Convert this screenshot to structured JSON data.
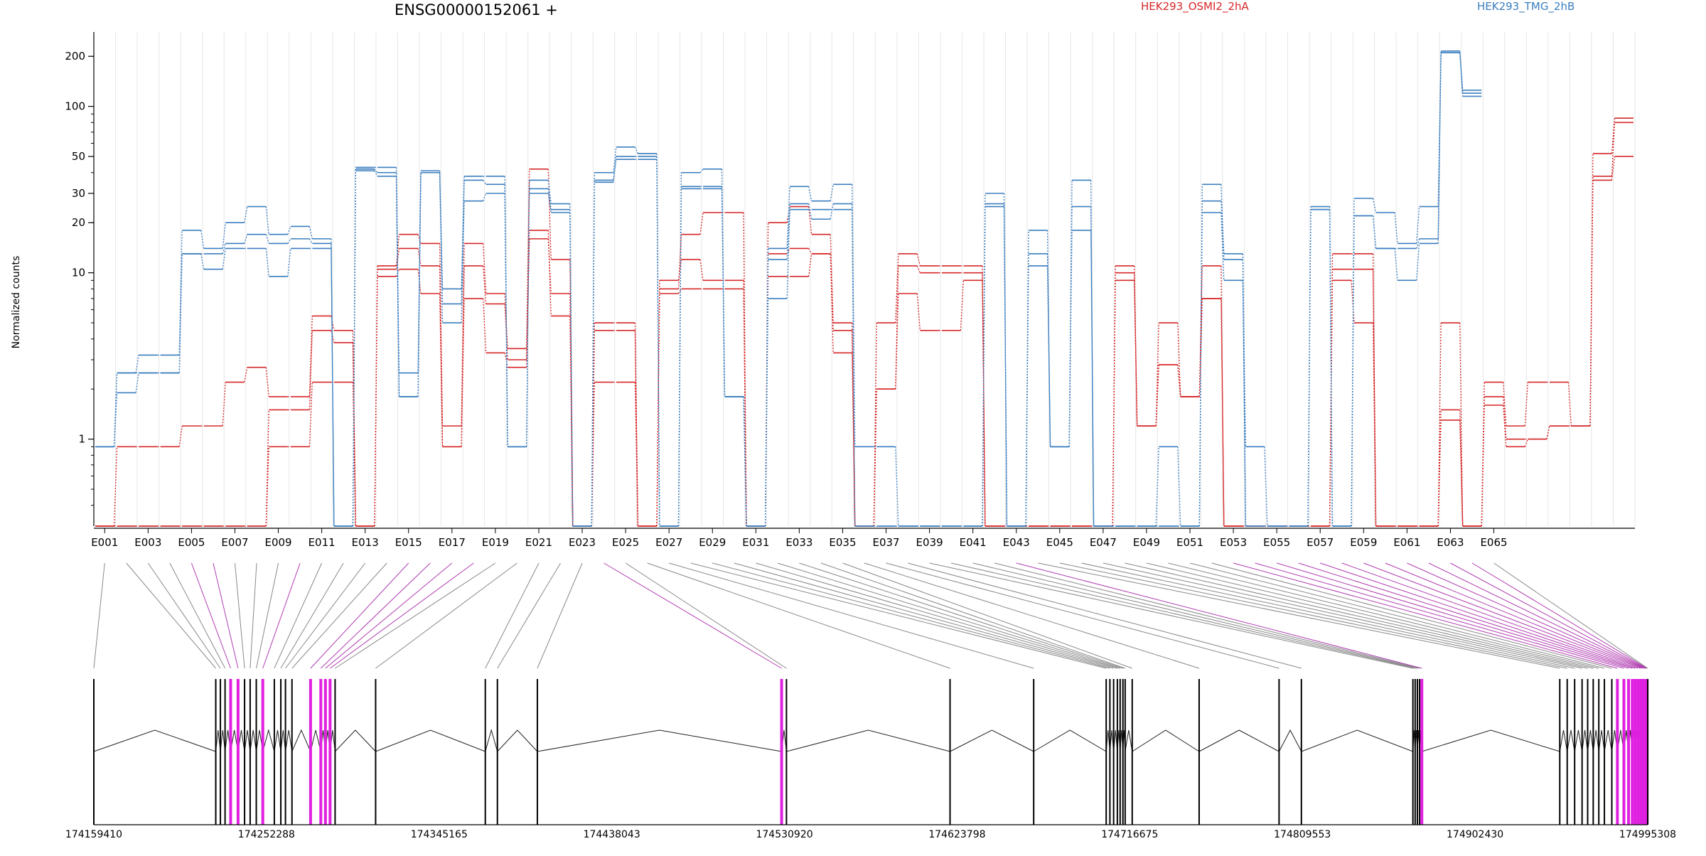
{
  "chart_data": {
    "type": "line",
    "title": "ENSG00000152061 +",
    "ylabel": "Normalized counts",
    "yscale": "log",
    "yticks": [
      1,
      10,
      20,
      30,
      50,
      100,
      200
    ],
    "ylim": [
      0.3,
      280
    ],
    "legend": [
      {
        "name": "HEK293_OSMI2_2hA",
        "color": "#d62728"
      },
      {
        "name": "HEK293_TMG_2hB",
        "color": "#3a7ebf"
      }
    ],
    "exon_labels_shown": [
      "E001",
      "E003",
      "E005",
      "E007",
      "E009",
      "E011",
      "E013",
      "E015",
      "E017",
      "E019",
      "E021",
      "E023",
      "E025",
      "E027",
      "E029",
      "E031",
      "E033",
      "E035",
      "E037",
      "E039",
      "E041",
      "E043",
      "E045",
      "E047",
      "E049",
      "E051",
      "E053",
      "E055",
      "E057",
      "E059",
      "E061",
      "E063",
      "E065"
    ],
    "series": [
      {
        "name": "HEK293_OSMI2_2hA",
        "color": "#d62728",
        "values": [
          0.3,
          0.9,
          0.9,
          0.9,
          1.2,
          1.2,
          2.2,
          2.7,
          1.8,
          1.8,
          5.5,
          4.5,
          0.3,
          11,
          17,
          15,
          1.2,
          15,
          7.5,
          3.5,
          42,
          12,
          0.3,
          5,
          5,
          0.3,
          8,
          17,
          23,
          23,
          0.3,
          20,
          25,
          17,
          5,
          0.3,
          5,
          13,
          11,
          11,
          11,
          0.3,
          0.3,
          0.3,
          0.3,
          0.3,
          0.3,
          11,
          1.2,
          5,
          1.8,
          11,
          0.3,
          0.3,
          0.3,
          0.3,
          0.3,
          13,
          13,
          0.3,
          0.3,
          0.3,
          5,
          0.3,
          2.2,
          1.2,
          2.2,
          2.2,
          1.2,
          52,
          85
        ]
      },
      {
        "name": "HEK293_OSMI2_2hA",
        "color": "#d62728",
        "values": [
          0.3,
          0.3,
          0.3,
          0.3,
          0.3,
          0.3,
          0.3,
          0.3,
          1.5,
          1.5,
          4.5,
          3.8,
          0.3,
          10.5,
          14,
          11,
          0.9,
          11,
          6.5,
          3,
          16,
          7.5,
          0.3,
          4.5,
          4.5,
          0.3,
          9,
          12,
          9,
          9,
          0.3,
          13,
          14,
          13,
          4.5,
          0.3,
          2,
          11,
          10,
          10,
          10,
          0.3,
          0.3,
          0.3,
          0.3,
          0.3,
          0.3,
          10,
          1.2,
          2.8,
          1.8,
          7,
          0.3,
          0.3,
          0.3,
          0.3,
          0.3,
          10.5,
          10.5,
          0.3,
          0.3,
          0.3,
          1.5,
          0.3,
          1.8,
          1,
          1,
          1.2,
          1.2,
          38,
          80
        ]
      },
      {
        "name": "HEK293_OSMI2_2hA",
        "color": "#d62728",
        "values": [
          0.3,
          0.3,
          0.3,
          0.3,
          0.3,
          0.3,
          0.3,
          0.3,
          0.9,
          0.9,
          2.2,
          2.2,
          0.3,
          9.5,
          10.5,
          7.5,
          0.9,
          7,
          3.3,
          2.7,
          18,
          5.5,
          0.3,
          2.2,
          2.2,
          0.3,
          7.5,
          8,
          8,
          8,
          0.3,
          9.5,
          9.5,
          13,
          3.3,
          0.3,
          2,
          7.5,
          4.5,
          4.5,
          9,
          0.3,
          0.3,
          0.3,
          0.3,
          0.3,
          0.3,
          9,
          1.2,
          2.8,
          1.8,
          7,
          0.3,
          0.3,
          0.3,
          0.3,
          0.3,
          9,
          5,
          0.3,
          0.3,
          0.3,
          1.3,
          0.3,
          1.6,
          0.9,
          1,
          1.2,
          1.2,
          36,
          50
        ]
      },
      {
        "name": "HEK293_TMG_2hB",
        "color": "#3a7ebf",
        "values": [
          0.9,
          2.5,
          3.2,
          3.2,
          18,
          14,
          20,
          25,
          17,
          19,
          16,
          0.3,
          43,
          43,
          2.5,
          41,
          8,
          38,
          38,
          0.9,
          36,
          26,
          0.3,
          40,
          57,
          52,
          0.3,
          40,
          42,
          1.8,
          0.3,
          14,
          33,
          27,
          34,
          0.9,
          0.9,
          0.3,
          0.3,
          0.3,
          0.3,
          30,
          0.3,
          18,
          0.9,
          36,
          0.3,
          0.3,
          0.3,
          0.9,
          0.3,
          34,
          12,
          0.9,
          0.3,
          0.3,
          25,
          0.3,
          28,
          23,
          15,
          25,
          215,
          120
        ]
      },
      {
        "name": "HEK293_TMG_2hB",
        "color": "#3a7ebf",
        "values": [
          0.9,
          2.5,
          2.5,
          2.5,
          13,
          13,
          15,
          17,
          15,
          16,
          15,
          0.3,
          42,
          40,
          1.8,
          40,
          6.5,
          36,
          34,
          0.9,
          32,
          24,
          0.3,
          36,
          50,
          50,
          0.3,
          33,
          33,
          1.8,
          0.3,
          12,
          26,
          21,
          26,
          0.3,
          0.3,
          0.3,
          0.3,
          0.3,
          0.3,
          26,
          0.3,
          13,
          0.9,
          25,
          0.3,
          0.3,
          0.3,
          0.3,
          0.3,
          27,
          13,
          0.3,
          0.3,
          0.3,
          24,
          0.3,
          22,
          14,
          14,
          16,
          210,
          115
        ]
      },
      {
        "name": "HEK293_TMG_2hB",
        "color": "#3a7ebf",
        "values": [
          0.9,
          1.9,
          2.5,
          2.5,
          13,
          10.5,
          14,
          14,
          9.5,
          14,
          14,
          0.3,
          41,
          38,
          1.8,
          40,
          5,
          27,
          30,
          0.9,
          30,
          23,
          0.3,
          35,
          48,
          48,
          0.3,
          32,
          32,
          1.8,
          0.3,
          7,
          24,
          24,
          24,
          0.3,
          0.3,
          0.3,
          0.3,
          0.3,
          0.3,
          25,
          0.3,
          11,
          0.9,
          18,
          0.3,
          0.3,
          0.3,
          0.3,
          0.3,
          23,
          9,
          0.3,
          0.3,
          0.3,
          24,
          0.3,
          22,
          14,
          9,
          15,
          210,
          125
        ]
      }
    ],
    "genomic_axis_ticks": [
      "174159410",
      "174252288",
      "174345165",
      "174438043",
      "174530920",
      "174623798",
      "174716675",
      "174809553",
      "174902430",
      "174995308"
    ],
    "genomic_range": [
      174159410,
      174995308
    ]
  }
}
